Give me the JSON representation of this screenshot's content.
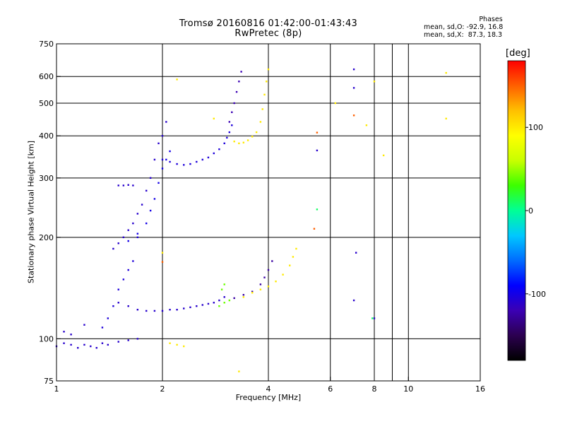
{
  "header": {
    "title": "Tromsø 20160816 01:42:00-01:43:43",
    "subtitle": "RwPretec (8p)"
  },
  "phases": {
    "title": "Phases",
    "line_o": "mean, sd,O: -92.9, 16.8",
    "line_x": "mean, sd,X:  87.3, 18.3"
  },
  "colorbar": {
    "unit_label": "[deg]",
    "range": [
      -180,
      180
    ],
    "ticks": [
      {
        "value": 100,
        "label": "100"
      },
      {
        "value": 0,
        "label": "0"
      },
      {
        "value": -100,
        "label": "-100"
      }
    ],
    "colors_low_to_high": [
      "#000000",
      "#2c0050",
      "#3b00b4",
      "#0000ff",
      "#006cff",
      "#00c8ff",
      "#00ff96",
      "#3cff00",
      "#c8ff00",
      "#ffff00",
      "#ffc000",
      "#ff6000",
      "#ff0000"
    ]
  },
  "chart_data": {
    "type": "scatter",
    "title": "Tromsø 20160816 01:42:00-01:43:43",
    "subtitle": "RwPretec (8p)",
    "xlabel": "Frequency [MHz]",
    "ylabel": "Stationary phase Virtual Height [km]",
    "x_scale": "log",
    "y_scale": "log",
    "xlim": [
      1,
      16
    ],
    "ylim": [
      75,
      750
    ],
    "grid": true,
    "x_ticks": [
      {
        "value": 1,
        "label": "1"
      },
      {
        "value": 2,
        "label": "2"
      },
      {
        "value": 4,
        "label": "4"
      },
      {
        "value": 6,
        "label": "6"
      },
      {
        "value": 8,
        "label": "8"
      },
      {
        "value": 10,
        "label": "10"
      },
      {
        "value": 16,
        "label": "16"
      }
    ],
    "x_grid_values": [
      2,
      4,
      6,
      8,
      9,
      10
    ],
    "y_ticks": [
      {
        "value": 75,
        "label": "75"
      },
      {
        "value": 100,
        "label": "100"
      },
      {
        "value": 200,
        "label": "200"
      },
      {
        "value": 300,
        "label": "300"
      },
      {
        "value": 400,
        "label": "400"
      },
      {
        "value": 500,
        "label": "500"
      },
      {
        "value": 600,
        "label": "600"
      },
      {
        "value": 750,
        "label": "750"
      }
    ],
    "point_groups": [
      {
        "mode": "O",
        "phase": -110,
        "points": [
          [
            1.0,
            95
          ],
          [
            1.05,
            97
          ],
          [
            1.1,
            96
          ],
          [
            1.15,
            94
          ],
          [
            1.2,
            96
          ],
          [
            1.25,
            95
          ],
          [
            1.3,
            94
          ],
          [
            1.35,
            97
          ],
          [
            1.4,
            96
          ],
          [
            1.5,
            98
          ],
          [
            1.6,
            99
          ],
          [
            1.7,
            100
          ],
          [
            1.05,
            105
          ],
          [
            1.1,
            103
          ],
          [
            1.2,
            110
          ]
        ]
      },
      {
        "mode": "O",
        "phase": -105,
        "points": [
          [
            1.35,
            108
          ],
          [
            1.4,
            115
          ],
          [
            1.45,
            125
          ],
          [
            1.5,
            140
          ],
          [
            1.55,
            150
          ],
          [
            1.6,
            160
          ],
          [
            1.65,
            170
          ],
          [
            1.7,
            200
          ]
        ]
      },
      {
        "mode": "O",
        "phase": -110,
        "points": [
          [
            1.45,
            185
          ],
          [
            1.5,
            192
          ],
          [
            1.55,
            200
          ],
          [
            1.6,
            210
          ],
          [
            1.65,
            220
          ],
          [
            1.7,
            235
          ],
          [
            1.75,
            250
          ],
          [
            1.8,
            275
          ],
          [
            1.85,
            300
          ],
          [
            1.9,
            340
          ],
          [
            1.95,
            380
          ],
          [
            2.0,
            400
          ],
          [
            2.05,
            440
          ]
        ]
      },
      {
        "mode": "O",
        "phase": -100,
        "points": [
          [
            1.6,
            195
          ],
          [
            1.7,
            205
          ],
          [
            1.8,
            220
          ],
          [
            1.85,
            240
          ],
          [
            1.9,
            260
          ],
          [
            1.95,
            290
          ],
          [
            2.0,
            320
          ],
          [
            2.05,
            340
          ],
          [
            2.1,
            360
          ]
        ]
      },
      {
        "mode": "O",
        "phase": -110,
        "points": [
          [
            1.5,
            285
          ],
          [
            1.55,
            285
          ],
          [
            1.6,
            286
          ],
          [
            1.65,
            285
          ]
        ]
      },
      {
        "mode": "O",
        "phase": -110,
        "points": [
          [
            1.5,
            128
          ],
          [
            1.6,
            125
          ],
          [
            1.7,
            122
          ],
          [
            1.8,
            121
          ],
          [
            1.9,
            121
          ],
          [
            2.0,
            121
          ],
          [
            2.1,
            122
          ],
          [
            2.2,
            122
          ],
          [
            2.3,
            123
          ],
          [
            2.4,
            124
          ],
          [
            2.5,
            125
          ],
          [
            2.6,
            126
          ],
          [
            2.7,
            127
          ],
          [
            2.8,
            128
          ],
          [
            2.9,
            130
          ],
          [
            3.0,
            133
          ]
        ]
      },
      {
        "mode": "O",
        "phase": -105,
        "points": [
          [
            2.0,
            340
          ],
          [
            2.1,
            335
          ],
          [
            2.2,
            330
          ],
          [
            2.3,
            328
          ],
          [
            2.4,
            330
          ],
          [
            2.5,
            335
          ],
          [
            2.6,
            340
          ],
          [
            2.7,
            345
          ],
          [
            2.8,
            355
          ],
          [
            2.9,
            365
          ],
          [
            3.0,
            380
          ],
          [
            3.05,
            395
          ],
          [
            3.1,
            410
          ],
          [
            3.15,
            430
          ]
        ]
      },
      {
        "mode": "O",
        "phase": -120,
        "points": [
          [
            3.1,
            440
          ],
          [
            3.15,
            470
          ],
          [
            3.2,
            500
          ],
          [
            3.25,
            540
          ],
          [
            3.3,
            580
          ],
          [
            3.35,
            620
          ]
        ]
      },
      {
        "mode": "X",
        "phase": 100,
        "points": [
          [
            3.2,
            385
          ],
          [
            3.3,
            380
          ],
          [
            3.4,
            382
          ],
          [
            3.5,
            388
          ],
          [
            3.6,
            398
          ],
          [
            3.7,
            410
          ],
          [
            3.8,
            440
          ],
          [
            3.85,
            480
          ],
          [
            3.9,
            530
          ],
          [
            3.95,
            580
          ],
          [
            4.0,
            630
          ]
        ]
      },
      {
        "mode": "O",
        "phase": -125,
        "points": [
          [
            3.2,
            132
          ],
          [
            3.4,
            135
          ],
          [
            3.6,
            138
          ],
          [
            3.8,
            145
          ],
          [
            3.9,
            152
          ],
          [
            4.0,
            160
          ],
          [
            4.1,
            170
          ]
        ]
      },
      {
        "mode": "X",
        "phase": 100,
        "points": [
          [
            3.4,
            133
          ],
          [
            3.6,
            137
          ],
          [
            3.8,
            140
          ],
          [
            4.0,
            143
          ],
          [
            4.2,
            148
          ],
          [
            4.4,
            155
          ],
          [
            4.6,
            165
          ],
          [
            4.7,
            175
          ],
          [
            4.8,
            185
          ]
        ]
      },
      {
        "mode": "X",
        "phase": 40,
        "points": [
          [
            2.9,
            125
          ],
          [
            3.0,
            128
          ],
          [
            3.1,
            130
          ],
          [
            2.95,
            140
          ],
          [
            3.0,
            145
          ]
        ]
      },
      {
        "mode": "X",
        "phase": 100,
        "points": [
          [
            2.2,
            96
          ],
          [
            2.3,
            95
          ],
          [
            2.1,
            97
          ],
          [
            2.0,
            180
          ],
          [
            2.2,
            588
          ],
          [
            2.8,
            450
          ]
        ]
      },
      {
        "mode": "X",
        "phase": 100,
        "points": [
          [
            3.3,
            80
          ],
          [
            7.6,
            430
          ],
          [
            8.0,
            580
          ],
          [
            8.5,
            350
          ],
          [
            12.8,
            615
          ],
          [
            12.8,
            450
          ],
          [
            6.2,
            500
          ]
        ]
      },
      {
        "mode": "O",
        "phase": -110,
        "points": [
          [
            7.0,
            630
          ],
          [
            7.0,
            555
          ],
          [
            8.0,
            115
          ],
          [
            5.5,
            362
          ],
          [
            7.1,
            180
          ],
          [
            7.0,
            130
          ]
        ]
      },
      {
        "mode": "O",
        "phase": 10,
        "points": [
          [
            7.9,
            115
          ],
          [
            5.5,
            242
          ]
        ]
      },
      {
        "mode": "O",
        "phase": 150,
        "points": [
          [
            5.5,
            409
          ],
          [
            5.4,
            212
          ],
          [
            2.0,
            169
          ],
          [
            7.0,
            460
          ]
        ]
      }
    ]
  },
  "axis_labels": {
    "x": "Frequency [MHz]",
    "y": "Stationary phase Virtual Height [km]"
  }
}
